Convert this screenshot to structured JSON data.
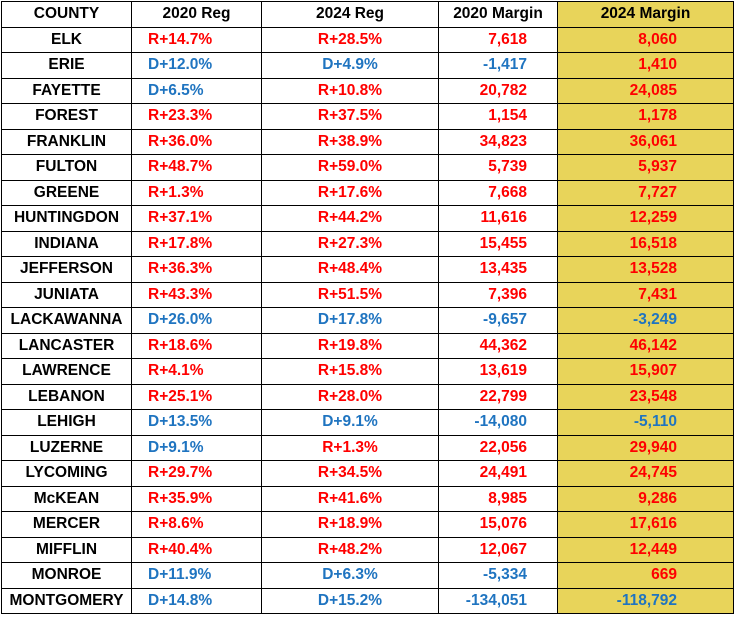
{
  "headers": [
    "COUNTY",
    "2020 Reg",
    "2024 Reg",
    "2020 Margin",
    "2024 Margin"
  ],
  "colors": {
    "red": "#ff0000",
    "blue": "#1f74c0",
    "highlight": "#e8d45a"
  },
  "rows": [
    {
      "county": "ELK",
      "reg2020": "R+14.7%",
      "reg2024": "R+28.5%",
      "margin2020": "7,618",
      "margin2024": "8,060"
    },
    {
      "county": "ERIE",
      "reg2020": "D+12.0%",
      "reg2024": "D+4.9%",
      "margin2020": "-1,417",
      "margin2024": "1,410"
    },
    {
      "county": "FAYETTE",
      "reg2020": "D+6.5%",
      "reg2024": "R+10.8%",
      "margin2020": "20,782",
      "margin2024": "24,085"
    },
    {
      "county": "FOREST",
      "reg2020": "R+23.3%",
      "reg2024": "R+37.5%",
      "margin2020": "1,154",
      "margin2024": "1,178"
    },
    {
      "county": "FRANKLIN",
      "reg2020": "R+36.0%",
      "reg2024": "R+38.9%",
      "margin2020": "34,823",
      "margin2024": "36,061"
    },
    {
      "county": "FULTON",
      "reg2020": "R+48.7%",
      "reg2024": "R+59.0%",
      "margin2020": "5,739",
      "margin2024": "5,937"
    },
    {
      "county": "GREENE",
      "reg2020": "R+1.3%",
      "reg2024": "R+17.6%",
      "margin2020": "7,668",
      "margin2024": "7,727"
    },
    {
      "county": "HUNTINGDON",
      "reg2020": "R+37.1%",
      "reg2024": "R+44.2%",
      "margin2020": "11,616",
      "margin2024": "12,259"
    },
    {
      "county": "INDIANA",
      "reg2020": "R+17.8%",
      "reg2024": "R+27.3%",
      "margin2020": "15,455",
      "margin2024": "16,518"
    },
    {
      "county": "JEFFERSON",
      "reg2020": "R+36.3%",
      "reg2024": "R+48.4%",
      "margin2020": "13,435",
      "margin2024": "13,528"
    },
    {
      "county": "JUNIATA",
      "reg2020": "R+43.3%",
      "reg2024": "R+51.5%",
      "margin2020": "7,396",
      "margin2024": "7,431"
    },
    {
      "county": "LACKAWANNA",
      "reg2020": "D+26.0%",
      "reg2024": "D+17.8%",
      "margin2020": "-9,657",
      "margin2024": "-3,249"
    },
    {
      "county": "LANCASTER",
      "reg2020": "R+18.6%",
      "reg2024": "R+19.8%",
      "margin2020": "44,362",
      "margin2024": "46,142"
    },
    {
      "county": "LAWRENCE",
      "reg2020": "R+4.1%",
      "reg2024": "R+15.8%",
      "margin2020": "13,619",
      "margin2024": "15,907"
    },
    {
      "county": "LEBANON",
      "reg2020": "R+25.1%",
      "reg2024": "R+28.0%",
      "margin2020": "22,799",
      "margin2024": "23,548"
    },
    {
      "county": "LEHIGH",
      "reg2020": "D+13.5%",
      "reg2024": "D+9.1%",
      "margin2020": "-14,080",
      "margin2024": "-5,110"
    },
    {
      "county": "LUZERNE",
      "reg2020": "D+9.1%",
      "reg2024": "R+1.3%",
      "margin2020": "22,056",
      "margin2024": "29,940"
    },
    {
      "county": "LYCOMING",
      "reg2020": "R+29.7%",
      "reg2024": "R+34.5%",
      "margin2020": "24,491",
      "margin2024": "24,745"
    },
    {
      "county": "McKEAN",
      "reg2020": "R+35.9%",
      "reg2024": "R+41.6%",
      "margin2020": "8,985",
      "margin2024": "9,286"
    },
    {
      "county": "MERCER",
      "reg2020": "R+8.6%",
      "reg2024": "R+18.9%",
      "margin2020": "15,076",
      "margin2024": "17,616"
    },
    {
      "county": "MIFFLIN",
      "reg2020": "R+40.4%",
      "reg2024": "R+48.2%",
      "margin2020": "12,067",
      "margin2024": "12,449"
    },
    {
      "county": "MONROE",
      "reg2020": "D+11.9%",
      "reg2024": "D+6.3%",
      "margin2020": "-5,334",
      "margin2024": "669"
    },
    {
      "county": "MONTGOMERY",
      "reg2020": "D+14.8%",
      "reg2024": "D+15.2%",
      "margin2020": "-134,051",
      "margin2024": "-118,792"
    }
  ]
}
